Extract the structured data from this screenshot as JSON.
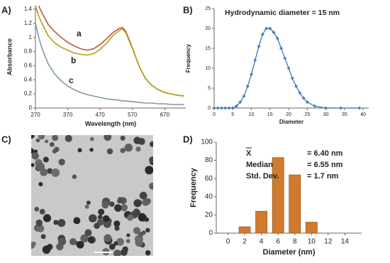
{
  "chart_data": [
    {
      "type": "line",
      "panel_label": "A)",
      "x_label": "Wavelength (nm)",
      "y_label": "Absorbance",
      "x": [
        270,
        280,
        290,
        310,
        330,
        350,
        370,
        390,
        410,
        430,
        450,
        470,
        490,
        510,
        530,
        540,
        550,
        570,
        590,
        610,
        630,
        650,
        670,
        690,
        710,
        730
      ],
      "series": [
        {
          "name": "a",
          "color": "#c0553a",
          "values": [
            null,
            1.45,
            1.35,
            1.18,
            1.08,
            1.0,
            0.93,
            0.88,
            0.84,
            0.82,
            0.84,
            0.9,
            0.98,
            1.07,
            1.13,
            1.14,
            1.08,
            0.85,
            0.6,
            0.42,
            0.32,
            0.26,
            0.22,
            0.2,
            0.18,
            0.17
          ]
        },
        {
          "name": "b",
          "color": "#b5a015",
          "values": [
            1.45,
            1.3,
            1.2,
            1.02,
            0.92,
            0.86,
            0.82,
            0.78,
            0.76,
            0.75,
            0.77,
            0.83,
            0.92,
            1.03,
            1.1,
            1.12,
            1.06,
            0.84,
            0.6,
            0.42,
            0.32,
            0.26,
            0.22,
            0.2,
            0.18,
            0.17
          ]
        },
        {
          "name": "c",
          "color": "#7f9a9a",
          "values": [
            1.2,
            1.0,
            0.85,
            0.62,
            0.48,
            0.38,
            0.31,
            0.26,
            0.22,
            0.19,
            0.17,
            0.15,
            0.13,
            0.12,
            0.11,
            0.1,
            0.1,
            0.09,
            0.08,
            0.07,
            0.07,
            0.06,
            0.06,
            0.05,
            0.05,
            0.05
          ]
        }
      ],
      "xlim": [
        270,
        735
      ],
      "xticks": [
        270,
        370,
        470,
        570,
        670
      ],
      "ylim": [
        0,
        1.45
      ],
      "yticks": [
        0,
        0.2,
        0.4,
        0.6,
        0.8,
        1,
        1.2,
        1.4
      ]
    },
    {
      "type": "line",
      "markers": true,
      "panel_label": "B)",
      "title": "Hydrodynamic diameter = 15 nm",
      "x_label": "Diameter",
      "y_label": "Frequency",
      "x": [
        0,
        1,
        2,
        3,
        4,
        5,
        6,
        7,
        8,
        9,
        10,
        11,
        12,
        13,
        14,
        15,
        16,
        17,
        18,
        19,
        20,
        21,
        22,
        23,
        24,
        25,
        27,
        30,
        34,
        39
      ],
      "series": [
        {
          "name": null,
          "color": "#4a7ebb",
          "values": [
            0,
            0,
            0,
            0,
            0,
            0,
            0.5,
            1.5,
            3,
            5.5,
            8.5,
            12,
            15.5,
            18.5,
            20,
            20,
            19,
            17.5,
            15,
            12.5,
            10,
            7.5,
            5.5,
            3.8,
            2.5,
            1.5,
            0.5,
            0,
            0,
            0
          ]
        }
      ],
      "xlim": [
        0,
        41.5
      ],
      "xticks": [
        0,
        5,
        10,
        15,
        20,
        25,
        30,
        35,
        40
      ],
      "ylim": [
        0,
        25
      ],
      "yticks": [
        0,
        5,
        10,
        15,
        20,
        25
      ]
    },
    {
      "type": "bar",
      "panel_label": "D)",
      "x_label": "Diameter (nm)",
      "y_label": "Frequency",
      "color": "#d07a2e",
      "x": [
        2,
        4,
        6,
        8,
        10
      ],
      "values": [
        7,
        24,
        83,
        64,
        12
      ],
      "xlim": [
        -1.4,
        16
      ],
      "xticks": [
        0,
        2,
        4,
        6,
        8,
        10,
        12,
        14
      ],
      "ylim": [
        0,
        100
      ],
      "yticks": [
        0,
        20,
        40,
        60,
        80,
        100
      ],
      "stats": [
        {
          "label": "X",
          "value": "= 6.40 nm"
        },
        {
          "label": "Median",
          "value": "= 6.55 nm"
        },
        {
          "label": "Std. Dev.",
          "value": "= 1.7 nm"
        }
      ]
    }
  ],
  "image_panel": {
    "panel_label": "C)"
  }
}
